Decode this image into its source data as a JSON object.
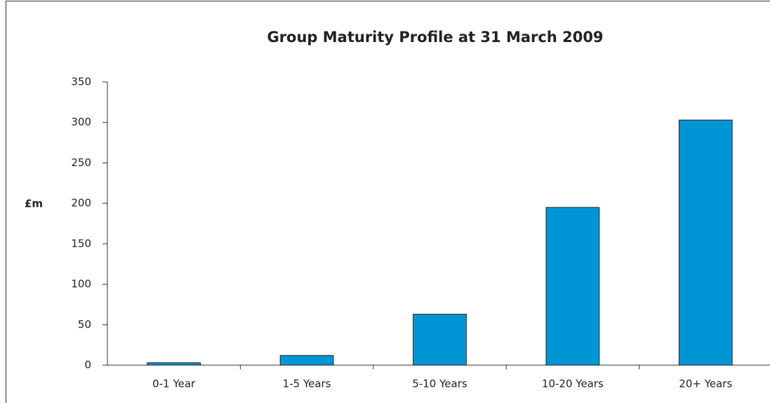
{
  "chart_data": {
    "type": "bar",
    "title": "Group Maturity Profile at 31 March 2009",
    "y_label": "£m",
    "categories": [
      "0-1 Year",
      "1-5 Years",
      "5-10 Years",
      "10-20 Years",
      "20+ Years"
    ],
    "values": [
      3,
      12,
      63,
      195,
      303
    ],
    "color": "#0096d6",
    "ylim": [
      0,
      350
    ],
    "yticks": [
      0,
      50,
      100,
      150,
      200,
      250,
      300,
      350
    ],
    "grid": false
  }
}
